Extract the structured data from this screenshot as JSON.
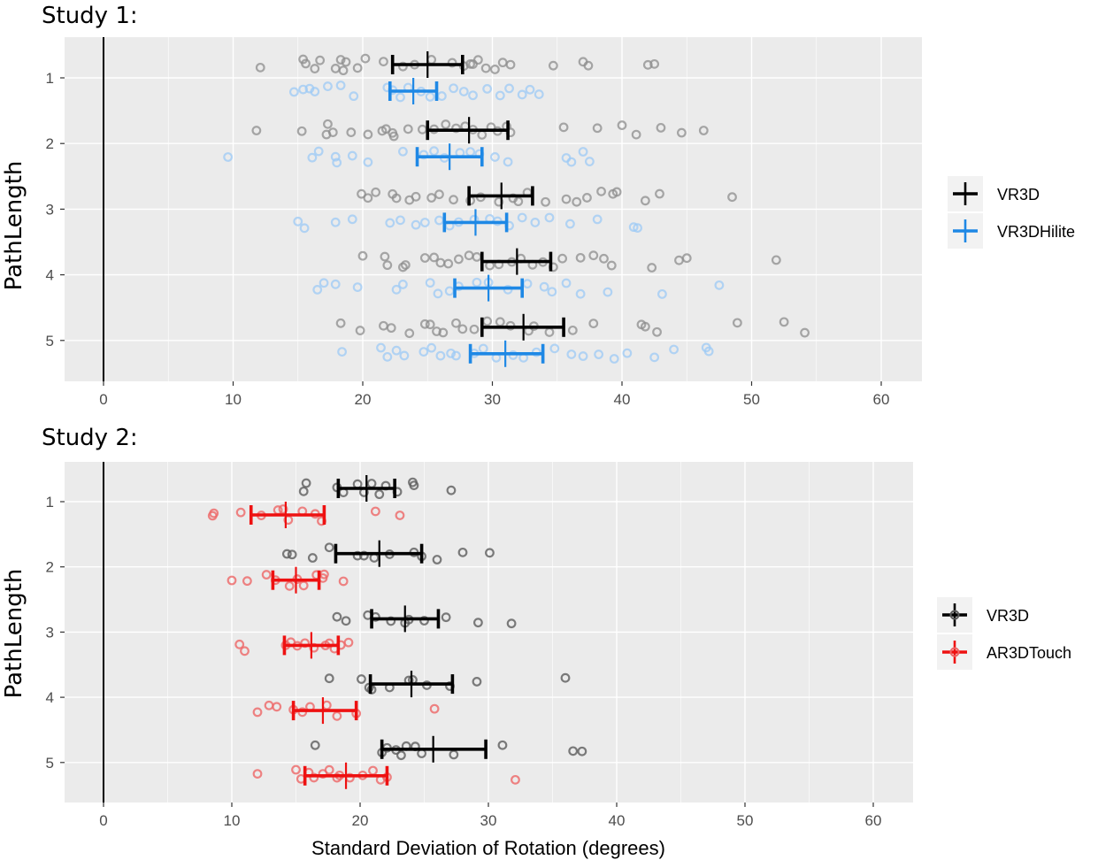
{
  "chart_data": [
    {
      "type": "scatter",
      "title": "Study 1:",
      "xlabel": "",
      "ylabel": "PathLength",
      "xlim": [
        -3,
        63
      ],
      "xticks": [
        0,
        10,
        20,
        30,
        40,
        50,
        60
      ],
      "categories": [
        "1",
        "2",
        "3",
        "4",
        "5"
      ],
      "reference_line_x": 0,
      "legend": {
        "position": "right"
      },
      "series": [
        {
          "name": "VR3D",
          "color": "#000000",
          "point_color": "#8c8c8c",
          "offset": "upper",
          "means": [
            25.0,
            28.2,
            30.7,
            31.9,
            32.4
          ],
          "ci_low": [
            22.3,
            25.0,
            28.2,
            29.2,
            29.2
          ],
          "ci_high": [
            27.7,
            31.2,
            33.1,
            34.5,
            35.5
          ],
          "points": [
            [
              12.1,
              15.4,
              15.6,
              16.3,
              16.7,
              17.9,
              18.3,
              18.5,
              18.7,
              19.6,
              20.2,
              21.6,
              23.1,
              24.0,
              25.3,
              26.9,
              27.8,
              28.3,
              28.5,
              28.9,
              29.5,
              30.2,
              30.8,
              31.4,
              34.7,
              37.0,
              37.4,
              42.0,
              42.5
            ],
            [
              11.8,
              15.3,
              17.2,
              17.3,
              17.7,
              19.1,
              20.4,
              21.5,
              21.8,
              22.3,
              22.4,
              23.5,
              24.6,
              25.5,
              26.4,
              27.2,
              27.9,
              28.5,
              29.2,
              29.9,
              30.4,
              31.1,
              31.4,
              35.5,
              38.1,
              40.0,
              41.1,
              43.0,
              44.6,
              46.3
            ],
            [
              19.9,
              20.4,
              21.0,
              22.3,
              22.6,
              23.6,
              24.1,
              25.3,
              25.9,
              27.0,
              28.3,
              29.1,
              30.5,
              31.6,
              32.0,
              32.7,
              34.1,
              35.7,
              36.5,
              37.3,
              38.4,
              39.3,
              39.6,
              41.8,
              42.9,
              48.5
            ],
            [
              20.0,
              21.7,
              21.9,
              23.1,
              23.3,
              24.8,
              25.5,
              26.0,
              26.6,
              27.4,
              28.2,
              28.8,
              29.8,
              30.5,
              31.5,
              32.2,
              33.1,
              33.9,
              34.7,
              35.4,
              36.8,
              37.8,
              38.6,
              39.2,
              42.3,
              44.4,
              45.0,
              51.9
            ],
            [
              18.3,
              19.8,
              21.6,
              22.2,
              23.6,
              24.8,
              25.2,
              25.7,
              26.2,
              27.2,
              27.7,
              28.6,
              29.6,
              30.6,
              31.4,
              32.8,
              33.2,
              34.4,
              36.2,
              37.8,
              41.5,
              41.8,
              42.7,
              48.9,
              52.5,
              54.1
            ]
          ]
        },
        {
          "name": "VR3DHilite",
          "color": "#1e88e5",
          "point_color": "#9ccaf5",
          "offset": "lower",
          "means": [
            23.9,
            26.7,
            28.7,
            29.7,
            31.0
          ],
          "ci_low": [
            22.1,
            24.2,
            26.3,
            27.1,
            28.3
          ],
          "ci_high": [
            25.7,
            29.2,
            31.1,
            32.3,
            33.9
          ],
          "points": [
            [
              14.7,
              15.4,
              15.9,
              16.3,
              17.3,
              18.3,
              19.3,
              21.9,
              22.3,
              22.9,
              23.5,
              24.5,
              25.2,
              26.1,
              27.0,
              27.8,
              28.5,
              29.6,
              30.6,
              31.3,
              32.3,
              32.9,
              33.6
            ],
            [
              9.6,
              16.1,
              16.6,
              17.9,
              18.0,
              19.2,
              20.4,
              23.1,
              24.7,
              25.5,
              26.3,
              27.5,
              28.3,
              29.0,
              30.2,
              31.2,
              35.7,
              36.1,
              37.0,
              37.5
            ],
            [
              15.0,
              15.5,
              17.9,
              19.2,
              22.1,
              22.9,
              24.1,
              24.8,
              25.9,
              26.7,
              27.4,
              28.6,
              29.8,
              30.4,
              31.3,
              32.3,
              33.3,
              34.4,
              36.0,
              38.1,
              40.9,
              41.2
            ],
            [
              16.5,
              17.0,
              17.9,
              19.6,
              22.6,
              23.1,
              25.2,
              25.8,
              26.7,
              27.4,
              28.8,
              29.7,
              31.2,
              32.7,
              34.0,
              34.6,
              35.7,
              36.8,
              38.9,
              43.1,
              47.5
            ],
            [
              18.4,
              21.4,
              21.9,
              22.6,
              23.2,
              24.7,
              25.3,
              26.0,
              26.8,
              27.2,
              28.6,
              29.3,
              30.3,
              31.6,
              32.4,
              33.4,
              34.8,
              36.1,
              37.0,
              38.2,
              39.4,
              40.4,
              42.5,
              44.0,
              46.5,
              46.7
            ]
          ]
        }
      ]
    },
    {
      "type": "scatter",
      "title": "Study 2:",
      "xlabel": "Standard Deviation of Rotation (degrees)",
      "ylabel": "PathLength",
      "xlim": [
        -3,
        63
      ],
      "xticks": [
        0,
        10,
        20,
        30,
        40,
        50,
        60
      ],
      "categories": [
        "1",
        "2",
        "3",
        "4",
        "5"
      ],
      "reference_line_x": 0,
      "legend": {
        "position": "right"
      },
      "series": [
        {
          "name": "VR3D",
          "color": "#000000",
          "point_color": "#5c5c5c",
          "offset": "upper",
          "means": [
            20.5,
            21.5,
            23.5,
            24.0,
            25.7
          ],
          "ci_low": [
            18.3,
            18.1,
            20.9,
            20.8,
            21.7
          ],
          "ci_high": [
            22.7,
            24.8,
            26.1,
            27.2,
            29.8
          ],
          "points": [
            [
              15.6,
              15.8,
              18.2,
              18.7,
              19.8,
              20.3,
              20.9,
              21.5,
              22.0,
              22.9,
              24.1,
              24.2,
              27.1
            ],
            [
              14.3,
              14.7,
              16.3,
              17.6,
              19.8,
              20.3,
              21.1,
              22.3,
              24.2,
              24.8,
              26.0,
              28.0,
              30.1
            ],
            [
              18.2,
              18.9,
              20.6,
              21.2,
              22.4,
              23.5,
              23.8,
              25.0,
              26.7,
              29.2,
              31.8
            ],
            [
              17.6,
              20.1,
              20.7,
              20.9,
              22.3,
              23.8,
              24.1,
              25.2,
              27.0,
              29.1,
              36.0
            ],
            [
              16.5,
              21.7,
              22.1,
              22.8,
              23.2,
              23.6,
              24.3,
              24.8,
              27.3,
              31.1,
              36.6,
              37.3
            ]
          ]
        },
        {
          "name": "AR3DTouch",
          "color": "#ee1111",
          "point_color": "#ee6666",
          "offset": "lower",
          "means": [
            14.2,
            15.0,
            16.2,
            17.1,
            18.9
          ],
          "ci_low": [
            11.5,
            13.2,
            14.1,
            14.8,
            15.7
          ],
          "ci_high": [
            17.2,
            16.8,
            18.3,
            19.7,
            22.1
          ],
          "points": [
            [
              8.5,
              8.6,
              10.7,
              12.3,
              13.6,
              14.0,
              14.4,
              15.5,
              16.5,
              17.0,
              21.2,
              23.1
            ],
            [
              10.0,
              11.2,
              12.7,
              13.4,
              14.5,
              15.1,
              15.6,
              16.6,
              17.1,
              17.2,
              18.7
            ],
            [
              10.6,
              11.0,
              14.2,
              14.6,
              15.1,
              15.7,
              16.4,
              17.3,
              17.6,
              18.0,
              18.5,
              19.1
            ],
            [
              12.0,
              12.9,
              13.5,
              14.8,
              15.5,
              16.1,
              17.4,
              18.2,
              19.7,
              25.8
            ],
            [
              12.0,
              15.0,
              15.4,
              16.0,
              16.4,
              17.1,
              17.6,
              18.2,
              18.4,
              19.2,
              20.2,
              21.0,
              21.6,
              22.1,
              32.1
            ]
          ]
        }
      ]
    }
  ]
}
